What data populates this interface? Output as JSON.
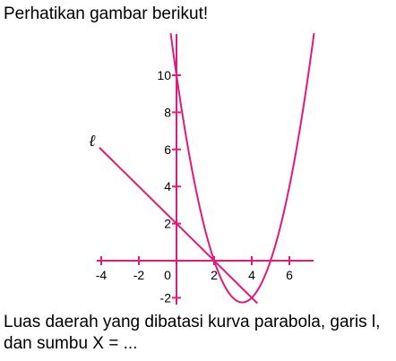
{
  "header": {
    "instruction": "Perhatikan gambar berikut!"
  },
  "figure": {
    "line_label": "ℓ",
    "curve_color": "#e0197d",
    "axis_color": "#e0197d",
    "x_ticks": [
      {
        "value": -4,
        "label": "-4"
      },
      {
        "value": -2,
        "label": "-2"
      },
      {
        "value": 0,
        "label": "0"
      },
      {
        "value": 2,
        "label": "2"
      },
      {
        "value": 4,
        "label": "4"
      },
      {
        "value": 6,
        "label": "6"
      }
    ],
    "y_ticks": [
      {
        "value": 10,
        "label": "10"
      },
      {
        "value": 8,
        "label": "8"
      },
      {
        "value": 6,
        "label": "6"
      },
      {
        "value": 4,
        "label": "4"
      },
      {
        "value": 2,
        "label": "2"
      },
      {
        "value": -2,
        "label": "-2"
      }
    ],
    "parabola": {
      "vertex": [
        3.5,
        -2.25
      ],
      "roots": [
        2,
        5
      ],
      "y_intercept": 10
    },
    "line": {
      "slope": -1,
      "y_intercept": 2
    }
  },
  "question": {
    "line1": "Luas daerah yang dibatasi kurva parabola, garis l,",
    "line2": "dan sumbu X = ..."
  }
}
